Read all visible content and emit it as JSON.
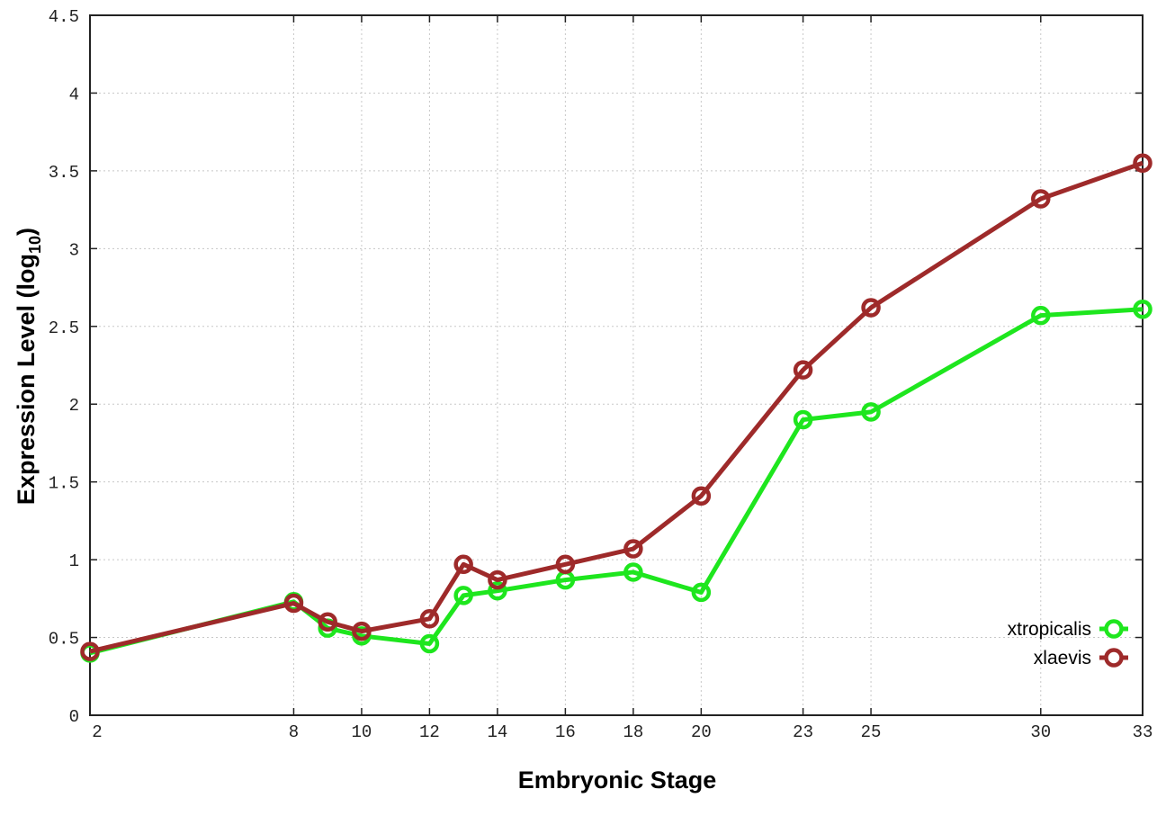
{
  "chart_data": {
    "type": "line",
    "title": "",
    "xlabel": "Embryonic Stage",
    "ylabel_main": "Expression Level (log",
    "ylabel_sub": "10",
    "ylabel_close": ")",
    "xlim": [
      2,
      33
    ],
    "ylim": [
      0,
      4.5
    ],
    "x_ticks": [
      2,
      8,
      10,
      12,
      14,
      16,
      18,
      20,
      23,
      25,
      30,
      33
    ],
    "y_ticks": [
      0,
      0.5,
      1,
      1.5,
      2,
      2.5,
      3,
      3.5,
      4,
      4.5
    ],
    "y_tick_labels": [
      "0",
      "0.5",
      "1",
      "1.5",
      "2",
      "2.5",
      "3",
      "3.5",
      "4",
      "4.5"
    ],
    "grid": true,
    "legend_position": "bottom-right",
    "x": [
      2,
      8,
      9,
      10,
      12,
      13,
      14,
      16,
      18,
      20,
      23,
      25,
      30,
      33
    ],
    "series": [
      {
        "name": "xtropicalis",
        "color": "#1ee61e",
        "values": [
          0.4,
          0.73,
          0.56,
          0.51,
          0.46,
          0.77,
          0.8,
          0.87,
          0.92,
          0.79,
          1.9,
          1.95,
          2.57,
          2.61
        ]
      },
      {
        "name": "xlaevis",
        "color": "#9e2a2a",
        "values": [
          0.41,
          0.72,
          0.6,
          0.54,
          0.62,
          0.97,
          0.87,
          0.97,
          1.07,
          1.41,
          2.22,
          2.62,
          3.32,
          3.55
        ]
      }
    ]
  }
}
